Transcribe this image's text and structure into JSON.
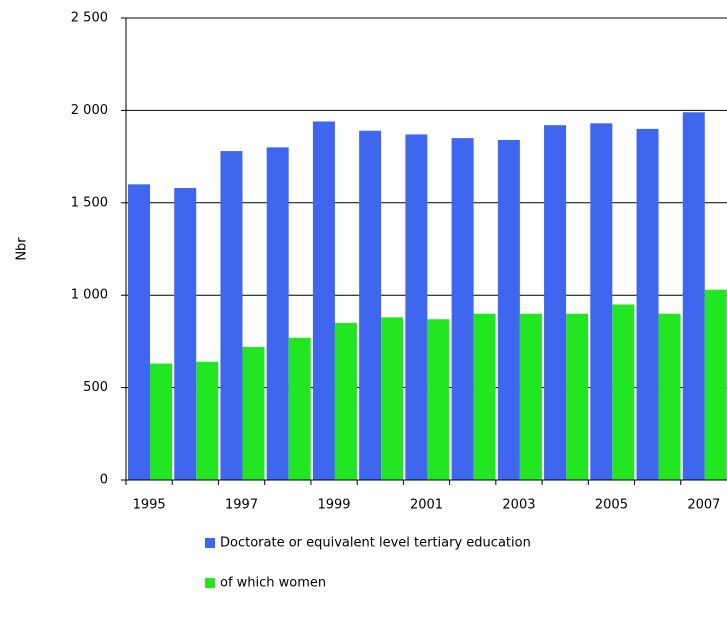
{
  "chart_data": {
    "type": "bar",
    "y_label": "Nbr",
    "categories": [
      "1995",
      null,
      "1997",
      null,
      "1999",
      null,
      "2001",
      null,
      "2003",
      null,
      "2005",
      null,
      "2007"
    ],
    "series": [
      {
        "name": "Doctorate or equivalent level  tertiary education",
        "color": "#3f66ee",
        "values": [
          1600,
          1580,
          1780,
          1800,
          1940,
          1890,
          1870,
          1850,
          1840,
          1920,
          1930,
          1900,
          1990
        ]
      },
      {
        "name": "of which women",
        "color": "#22e622",
        "values": [
          630,
          640,
          720,
          770,
          850,
          880,
          870,
          900,
          900,
          900,
          950,
          900,
          1030
        ]
      }
    ],
    "ylim": [
      0,
      2500
    ],
    "yticks": [
      0,
      500,
      {
        "value": 1000,
        "label": "1 000"
      },
      {
        "value": 1500,
        "label": "1 500"
      },
      {
        "value": 2000,
        "label": "2 000"
      },
      {
        "value": 2500,
        "label": "2 500"
      }
    ],
    "grid": true
  }
}
